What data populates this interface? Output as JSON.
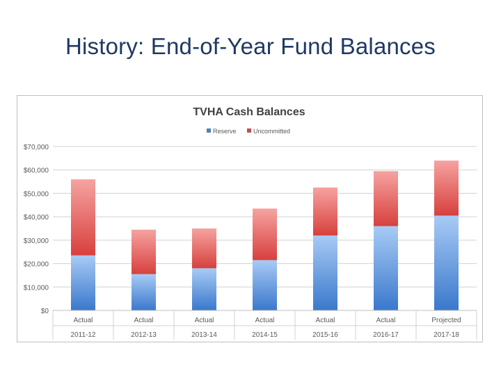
{
  "slide": {
    "title": "History: End-of-Year Fund Balances"
  },
  "chart_data": {
    "type": "bar",
    "stacked": true,
    "title": "TVHA Cash Balances",
    "xlabel": "",
    "ylabel": "",
    "ylim": [
      0,
      70000
    ],
    "yticks": [
      0,
      10000,
      20000,
      30000,
      40000,
      50000,
      60000,
      70000
    ],
    "ytick_labels": [
      "$0",
      "$10,000",
      "$20,000",
      "$30,000",
      "$40,000",
      "$50,000",
      "$60,000",
      "$70,000"
    ],
    "categories": [
      "2011-12",
      "2012-13",
      "2013-14",
      "2014-15",
      "2015-16",
      "2016-17",
      "2017-18"
    ],
    "category_status": [
      "Actual",
      "Actual",
      "Actual",
      "Actual",
      "Actual",
      "Actual",
      "Projected"
    ],
    "grid": true,
    "legend_position": "top-center",
    "series": [
      {
        "name": "Reserve",
        "color": "#4F81BD",
        "values": [
          23500,
          15500,
          18000,
          21500,
          32000,
          36000,
          40500
        ]
      },
      {
        "name": "Uncommitted",
        "color": "#C0504D",
        "values": [
          32500,
          19000,
          17000,
          22000,
          20500,
          23500,
          23500
        ]
      }
    ]
  }
}
